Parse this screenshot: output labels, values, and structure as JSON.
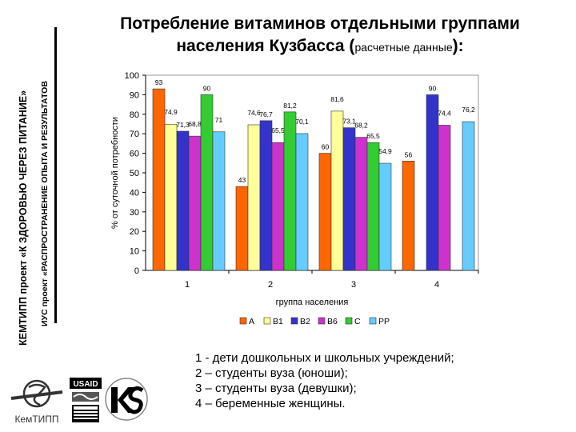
{
  "side_text_1": "КЕМТИПП проект «К ЗДОРОВЬЮ ЧЕРЕЗ ПИТАНИЕ»",
  "side_text_2": "ИУС проект «РАСПРОСТРАНЕНИЕ ОПЫТА И РЕЗУЛЬТАТОВ",
  "title_line1": "Потребление витаминов отдельными группами",
  "title_line2": "населения Кузбасса (",
  "title_sub": "расчетные данные",
  "title_end": "):",
  "notes": [
    "1 - дети дошкольных и школьных учреждений;",
    "2 – студенты вуза (юноши);",
    "3 – студенты вуза (девушки);",
    "4 – беременные женщины."
  ],
  "logos": {
    "left_caption": "КемТИПП",
    "usaid_text": "USAID"
  },
  "chart_data": {
    "type": "bar",
    "title": "",
    "xlabel": "группа населения",
    "ylabel": "% от суточной потребности",
    "ylim": [
      0,
      100
    ],
    "yticks": [
      0,
      10,
      20,
      30,
      40,
      50,
      60,
      70,
      80,
      90,
      100
    ],
    "categories": [
      "1",
      "2",
      "3",
      "4"
    ],
    "legend_position": "bottom",
    "series": [
      {
        "name": "A",
        "color": "#ff6600",
        "values": [
          93,
          43,
          60,
          56
        ],
        "labels": [
          "93",
          "43",
          "60",
          "56"
        ]
      },
      {
        "name": "B1",
        "color": "#ffff99",
        "values": [
          74.9,
          74.6,
          81.6,
          null
        ],
        "labels": [
          "74,9",
          "74,6",
          "81,6",
          ""
        ]
      },
      {
        "name": "B2",
        "color": "#3333cc",
        "values": [
          71.3,
          76.7,
          73.1,
          90
        ],
        "labels": [
          "71,3",
          "76,7",
          "73,1",
          "90"
        ]
      },
      {
        "name": "B6",
        "color": "#cc33cc",
        "values": [
          68.8,
          65.5,
          68.2,
          74.4
        ],
        "labels": [
          "68,8",
          "65,5",
          "68,2",
          "74,4"
        ]
      },
      {
        "name": "C",
        "color": "#33cc33",
        "values": [
          90,
          81.2,
          65.5,
          null
        ],
        "labels": [
          "90",
          "81,2",
          "65,5",
          ""
        ]
      },
      {
        "name": "PP",
        "color": "#66ccff",
        "values": [
          71,
          70.1,
          54.9,
          76.2
        ],
        "labels": [
          "71",
          "70,1",
          "54,9",
          "76,2"
        ]
      }
    ]
  }
}
